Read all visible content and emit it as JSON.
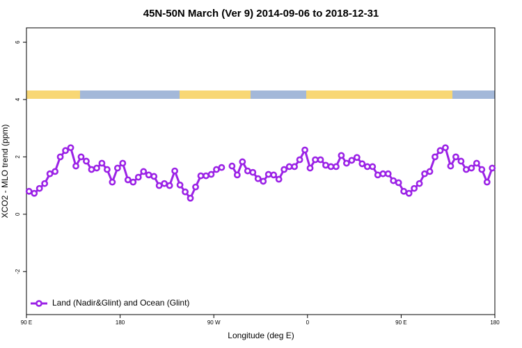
{
  "chart_data": {
    "type": "line",
    "title": "45N-50N March (Ver 9)   2014-09-06 to 2018-12-31",
    "x_label": "Longitude (deg E)",
    "y_label": "XCO2 - MLO trend (ppm)",
    "x": [
      92.5,
      97.5,
      102.5,
      107.5,
      112.5,
      117.5,
      122.5,
      127.5,
      132.5,
      137.5,
      142.5,
      147.5,
      152.5,
      157.5,
      162.5,
      167.5,
      172.5,
      177.5,
      182.5,
      187.5,
      192.5,
      197.5,
      202.5,
      207.5,
      212.5,
      217.5,
      222.5,
      227.5,
      232.5,
      237.5,
      242.5,
      247.5,
      252.5,
      257.5,
      262.5,
      267.5,
      272.5,
      277.5,
      282.5,
      287.5,
      292.5,
      297.5,
      302.5,
      307.5,
      312.5,
      317.5,
      322.5,
      327.5,
      332.5,
      337.5,
      342.5,
      347.5,
      352.5,
      357.5,
      362.5,
      367.5,
      372.5,
      377.5,
      382.5,
      387.5,
      392.5,
      397.5,
      402.5,
      407.5,
      412.5,
      417.5,
      422.5,
      427.5,
      432.5,
      437.5,
      442.5,
      447.5,
      452.5,
      457.5,
      462.5,
      467.5,
      472.5,
      477.5,
      482.5,
      487.5,
      492.5,
      497.5,
      502.5,
      507.5,
      512.5,
      517.5,
      522.5,
      527.5,
      532.5,
      537.5
    ],
    "series": [
      {
        "name": "Land (Nadir&Glint) and Ocean (Glint)",
        "color": "#9b22e6",
        "values": [
          0.8,
          0.73,
          0.9,
          1.07,
          1.41,
          1.49,
          2.0,
          2.22,
          2.32,
          1.68,
          2.0,
          1.85,
          1.56,
          1.61,
          1.78,
          1.56,
          1.12,
          1.61,
          1.78,
          1.2,
          1.12,
          1.29,
          1.49,
          1.37,
          1.32,
          1.0,
          1.07,
          1.0,
          1.51,
          1.02,
          0.78,
          0.56,
          0.95,
          1.34,
          1.34,
          1.39,
          1.56,
          1.63,
          null,
          1.68,
          1.37,
          1.83,
          1.51,
          1.46,
          1.24,
          1.15,
          1.39,
          1.37,
          1.22,
          1.56,
          1.66,
          1.66,
          1.9,
          2.24,
          1.61,
          1.9,
          1.9,
          1.71,
          1.66,
          1.66,
          2.05,
          1.78,
          1.88,
          1.98,
          1.76,
          1.66,
          1.66,
          1.37,
          1.41,
          1.41,
          1.17,
          1.1,
          0.8,
          0.73,
          0.9,
          1.07,
          1.41,
          1.49,
          2.0,
          2.22,
          2.32,
          1.68,
          2.0,
          1.85,
          1.56,
          1.61,
          1.78,
          1.56,
          1.12,
          1.61
        ]
      }
    ],
    "xlim": [
      90,
      540
    ],
    "xticks": [
      {
        "value": 90,
        "label": "90 E"
      },
      180,
      {
        "value": 270,
        "label": "90 W"
      },
      {
        "value": 360,
        "label": "0"
      },
      {
        "value": 450,
        "label": "90 E"
      },
      {
        "value": 540,
        "label": "180"
      }
    ],
    "ylim": [
      -3.5,
      6.5
    ],
    "yticks": [
      -2,
      0,
      2,
      4,
      6
    ],
    "legend": "bottom-left"
  }
}
